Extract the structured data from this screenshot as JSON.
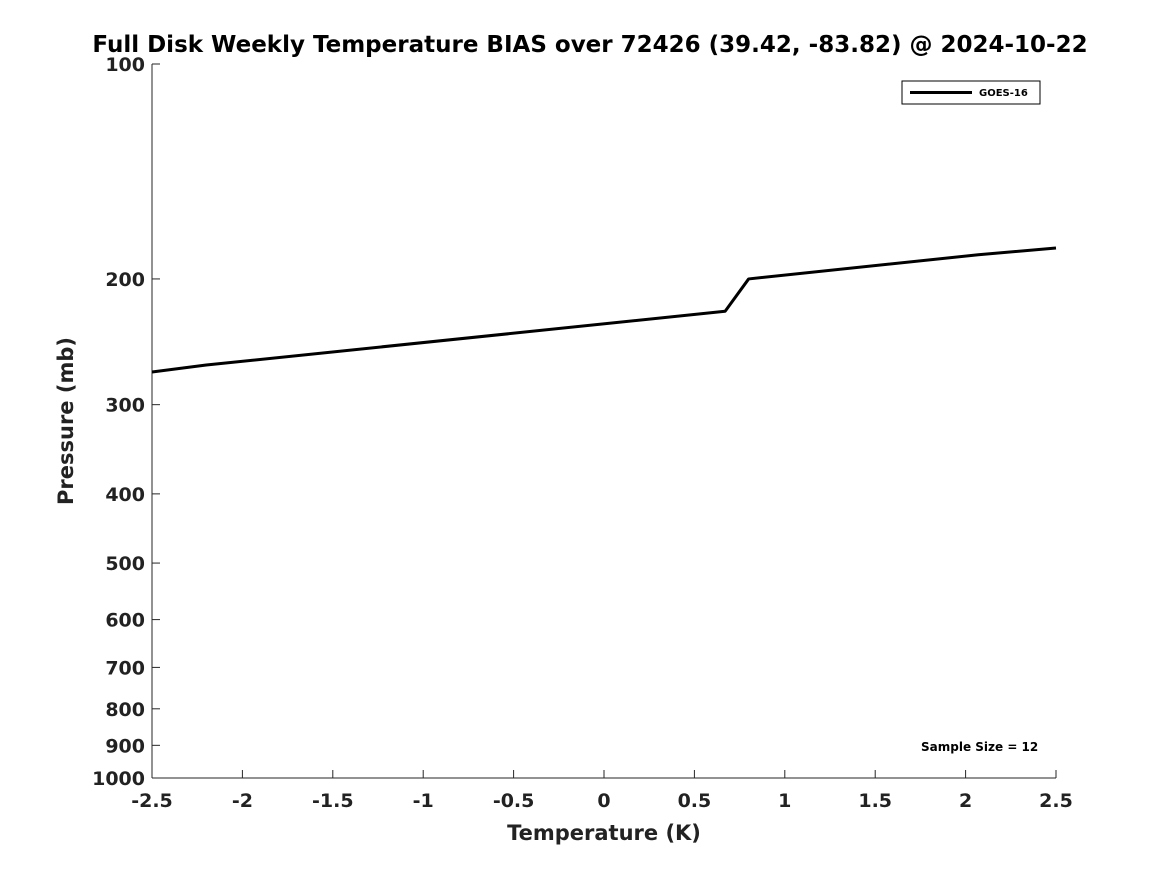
{
  "chart_data": {
    "type": "line",
    "title": "Full Disk Weekly Temperature BIAS over 72426 (39.42, -83.82) @ 2024-10-22",
    "xlabel": "Temperature (K)",
    "ylabel": "Pressure (mb)",
    "xlim": [
      -2.5,
      2.5
    ],
    "ylim": [
      1000,
      100
    ],
    "yscale": "log",
    "grid": false,
    "legend_position": "top-right",
    "x_ticks": [
      -2.5,
      -2,
      -1.5,
      -1,
      -0.5,
      0,
      0.5,
      1,
      1.5,
      2,
      2.5
    ],
    "x_tick_labels": [
      "-2.5",
      "-2",
      "-1.5",
      "-1",
      "-0.5",
      "0",
      "0.5",
      "1",
      "1.5",
      "2",
      "2.5"
    ],
    "y_ticks": [
      100,
      200,
      300,
      400,
      500,
      600,
      700,
      800,
      900,
      1000
    ],
    "y_tick_labels": [
      "100",
      "200",
      "300",
      "400",
      "500",
      "600",
      "700",
      "800",
      "900",
      "1000"
    ],
    "series": [
      {
        "name": "GOES-16",
        "color": "#000000",
        "points": [
          {
            "x": -2.5,
            "y": 270
          },
          {
            "x": -2.2,
            "y": 264
          },
          {
            "x": 0.67,
            "y": 222
          },
          {
            "x": 0.8,
            "y": 200
          },
          {
            "x": 2.07,
            "y": 185
          },
          {
            "x": 2.5,
            "y": 181
          }
        ]
      }
    ],
    "annotations": [
      {
        "text": "Sample Size = 12",
        "position": "bottom-right"
      }
    ]
  }
}
